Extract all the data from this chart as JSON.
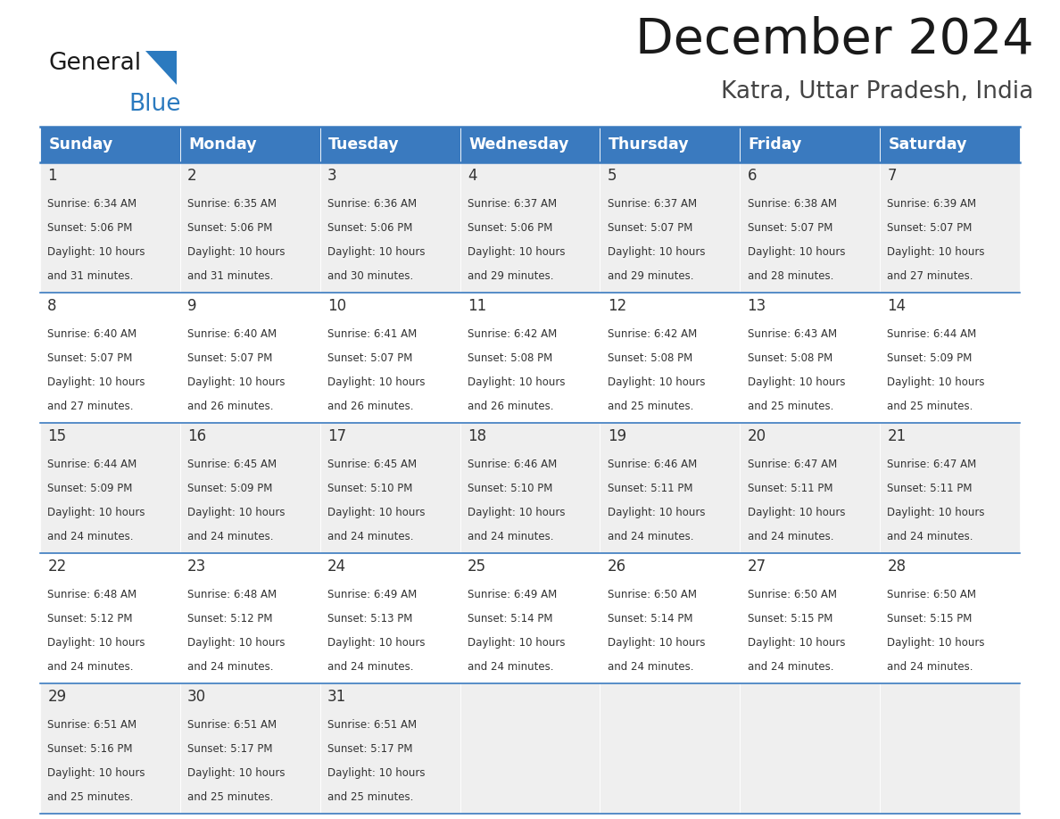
{
  "title": "December 2024",
  "subtitle": "Katra, Uttar Pradesh, India",
  "header_color": "#3a7abf",
  "header_text_color": "#ffffff",
  "cell_bg_even": "#efefef",
  "cell_bg_odd": "#ffffff",
  "text_color": "#333333",
  "logo_black": "#1a1a1a",
  "logo_blue": "#2b7abf",
  "line_color": "#3a7abf",
  "day_names": [
    "Sunday",
    "Monday",
    "Tuesday",
    "Wednesday",
    "Thursday",
    "Friday",
    "Saturday"
  ],
  "days": [
    {
      "day": 1,
      "col": 0,
      "row": 0,
      "sunrise": "6:34 AM",
      "sunset": "5:06 PM",
      "daylight": "10 hours and 31 minutes."
    },
    {
      "day": 2,
      "col": 1,
      "row": 0,
      "sunrise": "6:35 AM",
      "sunset": "5:06 PM",
      "daylight": "10 hours and 31 minutes."
    },
    {
      "day": 3,
      "col": 2,
      "row": 0,
      "sunrise": "6:36 AM",
      "sunset": "5:06 PM",
      "daylight": "10 hours and 30 minutes."
    },
    {
      "day": 4,
      "col": 3,
      "row": 0,
      "sunrise": "6:37 AM",
      "sunset": "5:06 PM",
      "daylight": "10 hours and 29 minutes."
    },
    {
      "day": 5,
      "col": 4,
      "row": 0,
      "sunrise": "6:37 AM",
      "sunset": "5:07 PM",
      "daylight": "10 hours and 29 minutes."
    },
    {
      "day": 6,
      "col": 5,
      "row": 0,
      "sunrise": "6:38 AM",
      "sunset": "5:07 PM",
      "daylight": "10 hours and 28 minutes."
    },
    {
      "day": 7,
      "col": 6,
      "row": 0,
      "sunrise": "6:39 AM",
      "sunset": "5:07 PM",
      "daylight": "10 hours and 27 minutes."
    },
    {
      "day": 8,
      "col": 0,
      "row": 1,
      "sunrise": "6:40 AM",
      "sunset": "5:07 PM",
      "daylight": "10 hours and 27 minutes."
    },
    {
      "day": 9,
      "col": 1,
      "row": 1,
      "sunrise": "6:40 AM",
      "sunset": "5:07 PM",
      "daylight": "10 hours and 26 minutes."
    },
    {
      "day": 10,
      "col": 2,
      "row": 1,
      "sunrise": "6:41 AM",
      "sunset": "5:07 PM",
      "daylight": "10 hours and 26 minutes."
    },
    {
      "day": 11,
      "col": 3,
      "row": 1,
      "sunrise": "6:42 AM",
      "sunset": "5:08 PM",
      "daylight": "10 hours and 26 minutes."
    },
    {
      "day": 12,
      "col": 4,
      "row": 1,
      "sunrise": "6:42 AM",
      "sunset": "5:08 PM",
      "daylight": "10 hours and 25 minutes."
    },
    {
      "day": 13,
      "col": 5,
      "row": 1,
      "sunrise": "6:43 AM",
      "sunset": "5:08 PM",
      "daylight": "10 hours and 25 minutes."
    },
    {
      "day": 14,
      "col": 6,
      "row": 1,
      "sunrise": "6:44 AM",
      "sunset": "5:09 PM",
      "daylight": "10 hours and 25 minutes."
    },
    {
      "day": 15,
      "col": 0,
      "row": 2,
      "sunrise": "6:44 AM",
      "sunset": "5:09 PM",
      "daylight": "10 hours and 24 minutes."
    },
    {
      "day": 16,
      "col": 1,
      "row": 2,
      "sunrise": "6:45 AM",
      "sunset": "5:09 PM",
      "daylight": "10 hours and 24 minutes."
    },
    {
      "day": 17,
      "col": 2,
      "row": 2,
      "sunrise": "6:45 AM",
      "sunset": "5:10 PM",
      "daylight": "10 hours and 24 minutes."
    },
    {
      "day": 18,
      "col": 3,
      "row": 2,
      "sunrise": "6:46 AM",
      "sunset": "5:10 PM",
      "daylight": "10 hours and 24 minutes."
    },
    {
      "day": 19,
      "col": 4,
      "row": 2,
      "sunrise": "6:46 AM",
      "sunset": "5:11 PM",
      "daylight": "10 hours and 24 minutes."
    },
    {
      "day": 20,
      "col": 5,
      "row": 2,
      "sunrise": "6:47 AM",
      "sunset": "5:11 PM",
      "daylight": "10 hours and 24 minutes."
    },
    {
      "day": 21,
      "col": 6,
      "row": 2,
      "sunrise": "6:47 AM",
      "sunset": "5:11 PM",
      "daylight": "10 hours and 24 minutes."
    },
    {
      "day": 22,
      "col": 0,
      "row": 3,
      "sunrise": "6:48 AM",
      "sunset": "5:12 PM",
      "daylight": "10 hours and 24 minutes."
    },
    {
      "day": 23,
      "col": 1,
      "row": 3,
      "sunrise": "6:48 AM",
      "sunset": "5:12 PM",
      "daylight": "10 hours and 24 minutes."
    },
    {
      "day": 24,
      "col": 2,
      "row": 3,
      "sunrise": "6:49 AM",
      "sunset": "5:13 PM",
      "daylight": "10 hours and 24 minutes."
    },
    {
      "day": 25,
      "col": 3,
      "row": 3,
      "sunrise": "6:49 AM",
      "sunset": "5:14 PM",
      "daylight": "10 hours and 24 minutes."
    },
    {
      "day": 26,
      "col": 4,
      "row": 3,
      "sunrise": "6:50 AM",
      "sunset": "5:14 PM",
      "daylight": "10 hours and 24 minutes."
    },
    {
      "day": 27,
      "col": 5,
      "row": 3,
      "sunrise": "6:50 AM",
      "sunset": "5:15 PM",
      "daylight": "10 hours and 24 minutes."
    },
    {
      "day": 28,
      "col": 6,
      "row": 3,
      "sunrise": "6:50 AM",
      "sunset": "5:15 PM",
      "daylight": "10 hours and 24 minutes."
    },
    {
      "day": 29,
      "col": 0,
      "row": 4,
      "sunrise": "6:51 AM",
      "sunset": "5:16 PM",
      "daylight": "10 hours and 25 minutes."
    },
    {
      "day": 30,
      "col": 1,
      "row": 4,
      "sunrise": "6:51 AM",
      "sunset": "5:17 PM",
      "daylight": "10 hours and 25 minutes."
    },
    {
      "day": 31,
      "col": 2,
      "row": 4,
      "sunrise": "6:51 AM",
      "sunset": "5:17 PM",
      "daylight": "10 hours and 25 minutes."
    }
  ],
  "num_rows": 5,
  "background_color": "#ffffff"
}
